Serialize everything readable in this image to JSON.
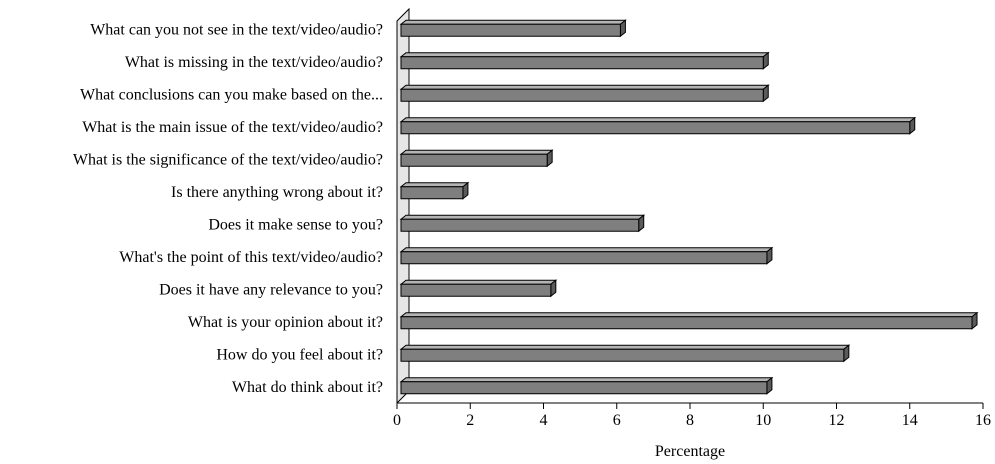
{
  "chart_data": {
    "type": "bar",
    "orientation": "horizontal",
    "style": "3d",
    "categories": [
      "What can you not see in the text/video/audio?",
      "What is missing in the text/video/audio?",
      "What conclusions can you make based on the...",
      "What is the main issue of the text/video/audio?",
      "What is the significance of the text/video/audio?",
      "Is there anything wrong about it?",
      "Does it make sense to you?",
      "What's the point of this text/video/audio?",
      "Does it have any relevance to you?",
      "What is your opinion about it?",
      "How do you feel about it?",
      "What do think about it?"
    ],
    "values": [
      6.1,
      10.0,
      10.0,
      14.0,
      4.1,
      1.8,
      6.6,
      10.1,
      4.2,
      15.7,
      12.2,
      10.1
    ],
    "title": "",
    "xlabel": "Percentage",
    "ylabel": "",
    "xlim": [
      0,
      16
    ],
    "xticks": [
      0,
      2,
      4,
      6,
      8,
      10,
      12,
      14,
      16
    ],
    "grid": false,
    "colors": {
      "bar": "#7f7f7f",
      "bar_top": "#b4b4b4",
      "bar_side": "#5a5a5a",
      "wall": "#e6e6e6"
    }
  }
}
